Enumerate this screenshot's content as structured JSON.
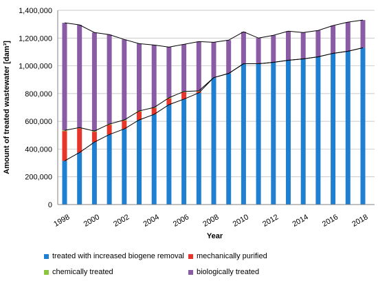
{
  "chart_data": {
    "type": "bar",
    "stacked": true,
    "xlabel": "Year",
    "ylabel": "Amount of treated wastewater  [dam³]",
    "ylim": [
      0,
      1400000
    ],
    "y_ticks": [
      "0",
      "200,000",
      "400,000",
      "600,000",
      "800,000",
      "1,000,000",
      "1,200,000",
      "1,400,000"
    ],
    "y_tick_values": [
      0,
      200000,
      400000,
      600000,
      800000,
      1000000,
      1200000,
      1400000
    ],
    "x_tick_labels": [
      "1998",
      "2000",
      "2002",
      "2004",
      "2006",
      "2008",
      "2010",
      "2012",
      "2014",
      "2016",
      "2018"
    ],
    "grid": "horizontal",
    "legend_position": "bottom",
    "categories": [
      "1998",
      "1999",
      "2000",
      "2001",
      "2002",
      "2003",
      "2004",
      "2005",
      "2006",
      "2007",
      "2008",
      "2009",
      "2010",
      "2011",
      "2012",
      "2013",
      "2014",
      "2015",
      "2016",
      "2017",
      "2018"
    ],
    "series": [
      {
        "name": "treated with increased biogene removal",
        "color": "#1f7fd1",
        "values": [
          315000,
          375000,
          450000,
          505000,
          545000,
          610000,
          650000,
          720000,
          760000,
          805000,
          915000,
          945000,
          1015000,
          1015000,
          1025000,
          1040000,
          1050000,
          1065000,
          1090000,
          1105000,
          1130000
        ]
      },
      {
        "name": "mechanically purified",
        "color": "#e8352b",
        "values": [
          215000,
          175000,
          75000,
          70000,
          60000,
          60000,
          45000,
          45000,
          50000,
          10000,
          0,
          0,
          0,
          0,
          0,
          0,
          0,
          0,
          0,
          0,
          0
        ]
      },
      {
        "name": "chemically treated",
        "color": "#8cc63f",
        "values": [
          5000,
          5000,
          5000,
          5000,
          5000,
          5000,
          5000,
          5000,
          5000,
          5000,
          0,
          0,
          0,
          0,
          0,
          0,
          0,
          0,
          0,
          0,
          0
        ]
      },
      {
        "name": "biologically treated",
        "color": "#8b5ca6",
        "values": [
          775000,
          740000,
          710000,
          645000,
          580000,
          485000,
          450000,
          365000,
          340000,
          355000,
          255000,
          240000,
          230000,
          185000,
          195000,
          210000,
          190000,
          190000,
          200000,
          210000,
          200000
        ]
      }
    ],
    "totals_line": [
      1310000,
      1295000,
      1240000,
      1225000,
      1190000,
      1160000,
      1150000,
      1135000,
      1155000,
      1175000,
      1170000,
      1185000,
      1245000,
      1200000,
      1220000,
      1250000,
      1240000,
      1255000,
      1290000,
      1315000,
      1330000
    ],
    "biogene_line": [
      315000,
      375000,
      450000,
      505000,
      545000,
      610000,
      650000,
      720000,
      760000,
      805000,
      915000,
      945000,
      1015000,
      1015000,
      1025000,
      1040000,
      1050000,
      1065000,
      1090000,
      1105000,
      1130000
    ],
    "mech_line": [
      535000,
      555000,
      530000,
      580000,
      610000,
      675000,
      700000,
      770000,
      815000,
      820000,
      915000,
      945000,
      1015000,
      1015000,
      1025000,
      1040000,
      1050000,
      1065000,
      1090000,
      1105000,
      1130000
    ]
  }
}
